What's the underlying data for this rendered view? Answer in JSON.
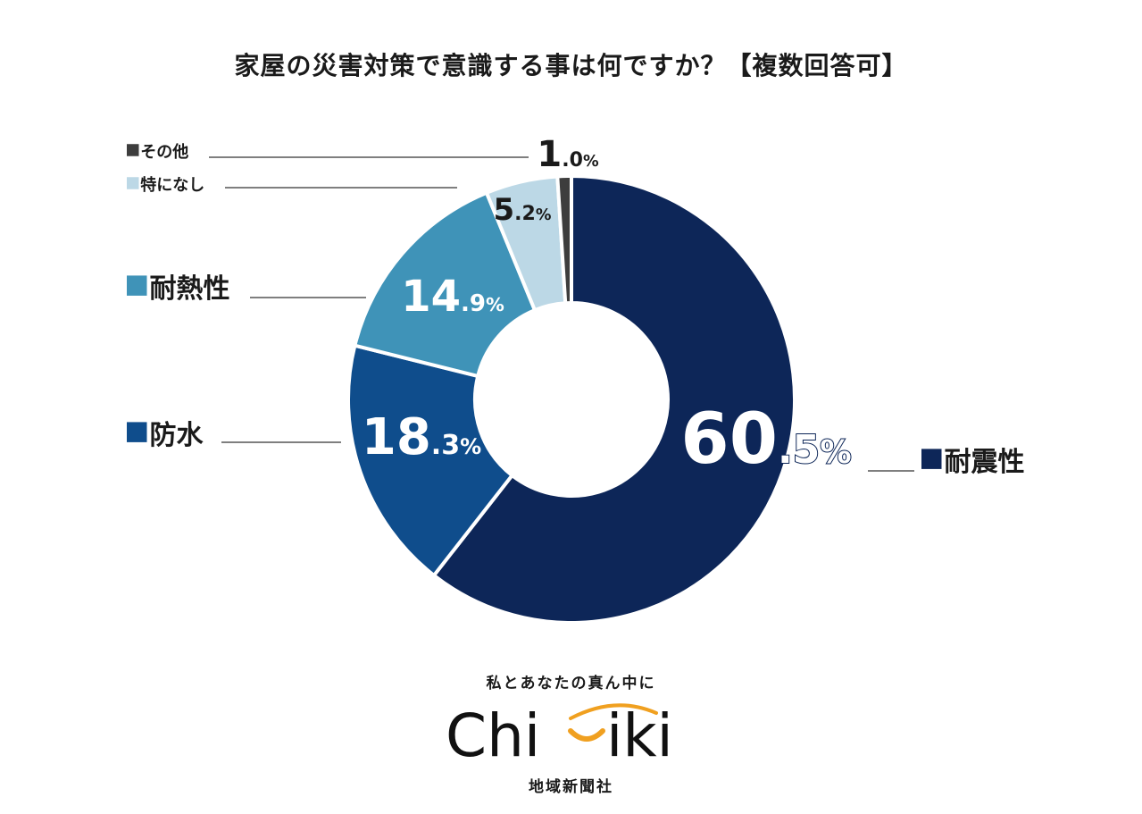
{
  "chart_data": {
    "type": "pie",
    "title": "家屋の災害対策で意識する事は何ですか？【複数回答可】",
    "unit": "%",
    "slices": [
      {
        "label": "耐震性",
        "value": 60.5,
        "color": "#0d2658"
      },
      {
        "label": "防水",
        "value": 18.3,
        "color": "#0f4d8c"
      },
      {
        "label": "耐熱性",
        "value": 14.9,
        "color": "#3f93b8"
      },
      {
        "label": "特になし",
        "value": 5.2,
        "color": "#bcd8e6"
      },
      {
        "label": "その他",
        "value": 1.0,
        "color": "#3d3d3d"
      }
    ]
  },
  "branding": {
    "tagline": "私とあなたの真ん中に",
    "wordmark_left": "Chi",
    "wordmark_right": "iki",
    "company": "地域新聞社",
    "accent_color": "#f0a020"
  }
}
